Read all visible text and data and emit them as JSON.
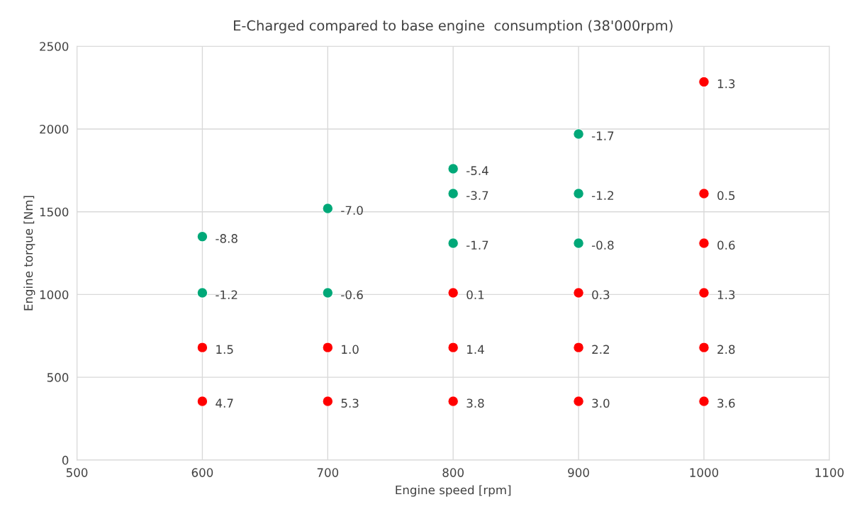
{
  "chart_data": {
    "type": "scatter",
    "title": "E-Charged compared to base engine  consumption (38'000rpm)",
    "xlabel": "Engine speed [rpm]",
    "ylabel": "Engine torque [Nm]",
    "xlim": [
      500,
      1100
    ],
    "xticks": [
      500,
      600,
      700,
      800,
      900,
      1000,
      1100
    ],
    "ylim": [
      0,
      2500
    ],
    "yticks": [
      0,
      500,
      1000,
      1500,
      2000,
      2500
    ],
    "grid": true,
    "marker": "circle",
    "series": [
      {
        "color": "#00a878",
        "x": [
          600,
          600,
          700,
          700,
          800,
          800,
          800,
          900,
          900,
          900
        ],
        "values": [
          1350,
          1010,
          1520,
          1010,
          1760,
          1610,
          1310,
          1970,
          1610,
          1310
        ]
      },
      {
        "color": "#ff0000",
        "x": [
          600,
          600,
          700,
          700,
          800,
          800,
          800,
          900,
          900,
          900,
          1000,
          1000,
          1000,
          1000,
          1000,
          1000
        ],
        "values": [
          680,
          355,
          680,
          355,
          1010,
          680,
          355,
          1010,
          680,
          355,
          2285,
          1610,
          1310,
          1010,
          680,
          355
        ]
      }
    ],
    "annotations": [
      {
        "text": "-8.8",
        "x": 600,
        "y": 1350
      },
      {
        "text": "-1.2",
        "x": 600,
        "y": 1010
      },
      {
        "text": "-7.0",
        "x": 700,
        "y": 1520
      },
      {
        "text": "-0.6",
        "x": 700,
        "y": 1010
      },
      {
        "text": "-5.4",
        "x": 800,
        "y": 1760
      },
      {
        "text": "-3.7",
        "x": 800,
        "y": 1610
      },
      {
        "text": "-1.7",
        "x": 800,
        "y": 1310
      },
      {
        "text": "-1.7",
        "x": 900,
        "y": 1970
      },
      {
        "text": "-1.2",
        "x": 900,
        "y": 1610
      },
      {
        "text": "-0.8",
        "x": 900,
        "y": 1310
      },
      {
        "text": "1.5",
        "x": 600,
        "y": 680
      },
      {
        "text": "4.7",
        "x": 600,
        "y": 355
      },
      {
        "text": "1.0",
        "x": 700,
        "y": 680
      },
      {
        "text": "5.3",
        "x": 700,
        "y": 355
      },
      {
        "text": "0.1",
        "x": 800,
        "y": 1010
      },
      {
        "text": "1.4",
        "x": 800,
        "y": 680
      },
      {
        "text": "3.8",
        "x": 800,
        "y": 355
      },
      {
        "text": "0.3",
        "x": 900,
        "y": 1010
      },
      {
        "text": "2.2",
        "x": 900,
        "y": 680
      },
      {
        "text": "3.0",
        "x": 900,
        "y": 355
      },
      {
        "text": "1.3",
        "x": 1000,
        "y": 2285
      },
      {
        "text": "0.5",
        "x": 1000,
        "y": 1610
      },
      {
        "text": "0.6",
        "x": 1000,
        "y": 1310
      },
      {
        "text": "1.3",
        "x": 1000,
        "y": 1010
      },
      {
        "text": "2.8",
        "x": 1000,
        "y": 680
      },
      {
        "text": "3.6",
        "x": 1000,
        "y": 355
      }
    ]
  }
}
